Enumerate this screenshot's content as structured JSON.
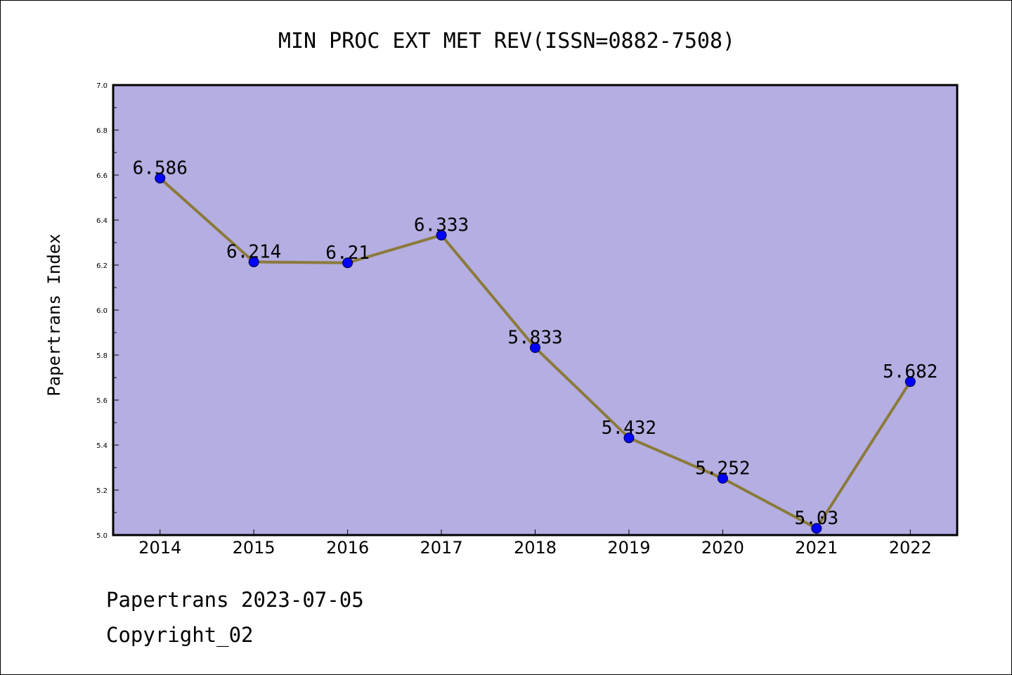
{
  "chart_data": {
    "type": "line",
    "title": "MIN PROC EXT MET REV(ISSN=0882-7508)",
    "xlabel": "",
    "ylabel": "Papertrans Index",
    "categories": [
      "2014",
      "2015",
      "2016",
      "2017",
      "2018",
      "2019",
      "2020",
      "2021",
      "2022"
    ],
    "series": [
      {
        "name": "Papertrans Index",
        "values": [
          6.586,
          6.214,
          6.21,
          6.333,
          5.833,
          5.432,
          5.252,
          5.03,
          5.682
        ],
        "labels": [
          "6.586",
          "6.214",
          "6.21",
          "6.333",
          "5.833",
          "5.432",
          "5.252",
          "5.03",
          "5.682"
        ]
      }
    ],
    "ylim": [
      5.0,
      7.0
    ],
    "yticks": [
      "5.0",
      "5.2",
      "5.4",
      "5.6",
      "5.8",
      "6.0",
      "6.2",
      "6.4",
      "6.6",
      "6.8",
      "7.0"
    ],
    "grid": false,
    "colors": {
      "plot_background": "#b4aee2",
      "line": "#8b7a3a",
      "marker": "#0000ff",
      "axis": "#000000"
    }
  },
  "footer": {
    "date_line": "Papertrans 2023-07-05",
    "copyright_line": "Copyright_02"
  }
}
